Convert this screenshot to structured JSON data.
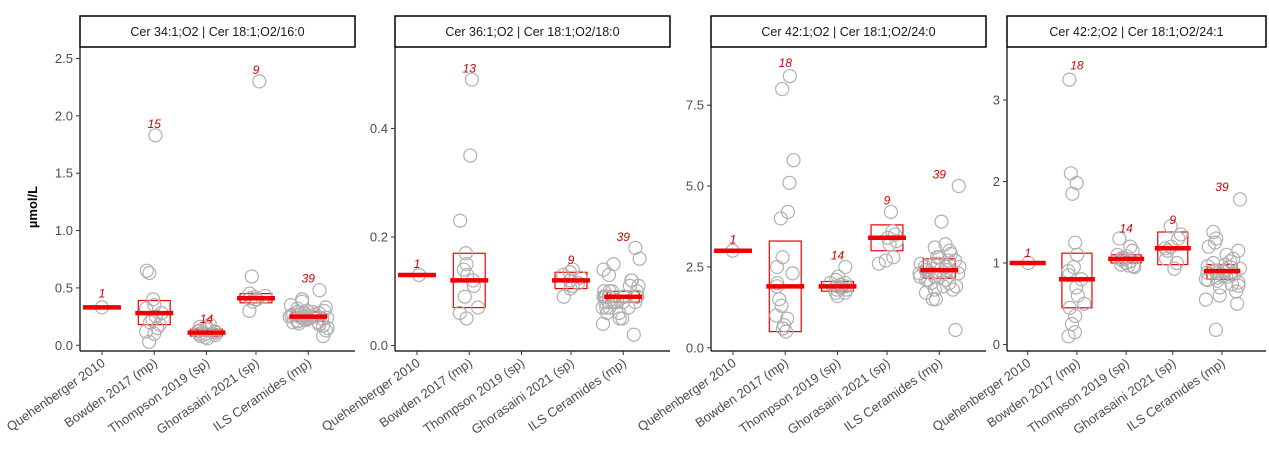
{
  "chart_data": {
    "type": "scatter",
    "ylabel": "µmol/L",
    "categories": [
      "Quehenberger 2010",
      "Bowden 2017 (mp)",
      "Thompson 2019 (sp)",
      "Ghorasaini 2021 (sp)",
      "ILS Ceramides (mp)"
    ],
    "colors": {
      "median": "#ee0000",
      "box": "#ee0000",
      "points": "#b0b0b0",
      "count": "#cc0000"
    },
    "panels": [
      {
        "title": "Cer 34:1;O2 | Cer 18:1;O2/16:0",
        "ylim": [
          -0.05,
          2.6
        ],
        "yticks": [
          0.0,
          0.5,
          1.0,
          1.5,
          2.0,
          2.5
        ],
        "ytick_labels": [
          "0.0",
          "0.5",
          "1.0",
          "1.5",
          "2.0",
          "2.5"
        ],
        "groups": [
          {
            "category": "Quehenberger 2010",
            "n": "1",
            "median": 0.33,
            "q1": 0.33,
            "q3": 0.33,
            "label_y": 0.45,
            "points": [
              0.33
            ]
          },
          {
            "category": "Bowden 2017 (mp)",
            "n": "15",
            "median": 0.28,
            "q1": 0.18,
            "q3": 0.39,
            "label_y": 1.93,
            "points": [
              1.83,
              0.65,
              0.63,
              0.4,
              0.35,
              0.32,
              0.28,
              0.25,
              0.22,
              0.2,
              0.18,
              0.15,
              0.12,
              0.1,
              0.03
            ]
          },
          {
            "category": "Thompson 2019 (sp)",
            "n": "14",
            "median": 0.11,
            "q1": 0.08,
            "q3": 0.14,
            "label_y": 0.23,
            "points": [
              0.18,
              0.16,
              0.15,
              0.14,
              0.13,
              0.12,
              0.12,
              0.11,
              0.1,
              0.1,
              0.09,
              0.08,
              0.07,
              0.06
            ]
          },
          {
            "category": "Ghorasaini 2021 (sp)",
            "n": "9",
            "median": 0.41,
            "q1": 0.37,
            "q3": 0.45,
            "label_y": 2.4,
            "points": [
              2.3,
              0.6,
              0.45,
              0.43,
              0.42,
              0.41,
              0.4,
              0.38,
              0.3
            ]
          },
          {
            "category": "ILS Ceramides (mp)",
            "n": "39",
            "median": 0.25,
            "q1": 0.21,
            "q3": 0.29,
            "label_y": 0.58,
            "points": [
              0.48,
              0.4,
              0.38,
              0.35,
              0.33,
              0.32,
              0.3,
              0.3,
              0.29,
              0.29,
              0.28,
              0.28,
              0.27,
              0.27,
              0.26,
              0.26,
              0.26,
              0.25,
              0.25,
              0.25,
              0.25,
              0.24,
              0.24,
              0.24,
              0.23,
              0.23,
              0.23,
              0.22,
              0.22,
              0.21,
              0.21,
              0.2,
              0.2,
              0.19,
              0.18,
              0.17,
              0.15,
              0.13,
              0.08
            ]
          }
        ]
      },
      {
        "title": "Cer 36:1;O2 | Cer 18:1;O2/18:0",
        "ylim": [
          -0.01,
          0.55
        ],
        "yticks": [
          0.0,
          0.2,
          0.4
        ],
        "ytick_labels": [
          "0.0",
          "0.2",
          "0.4"
        ],
        "groups": [
          {
            "category": "Quehenberger 2010",
            "n": "1",
            "median": 0.13,
            "q1": 0.13,
            "q3": 0.13,
            "label_y": 0.15,
            "points": [
              0.13
            ]
          },
          {
            "category": "Bowden 2017 (mp)",
            "n": "13",
            "median": 0.12,
            "q1": 0.07,
            "q3": 0.17,
            "label_y": 0.51,
            "points": [
              0.49,
              0.35,
              0.23,
              0.17,
              0.15,
              0.14,
              0.13,
              0.12,
              0.11,
              0.09,
              0.07,
              0.06,
              0.05
            ]
          },
          {
            "category": "Thompson 2019 (sp)",
            "n": "",
            "median": null,
            "q1": null,
            "q3": null,
            "label_y": 0,
            "points": []
          },
          {
            "category": "Ghorasaini 2021 (sp)",
            "n": "9",
            "median": 0.12,
            "q1": 0.105,
            "q3": 0.135,
            "label_y": 0.158,
            "points": [
              0.14,
              0.135,
              0.13,
              0.125,
              0.12,
              0.115,
              0.11,
              0.105,
              0.09
            ]
          },
          {
            "category": "ILS Ceramides (mp)",
            "n": "39",
            "median": 0.09,
            "q1": 0.08,
            "q3": 0.1,
            "label_y": 0.2,
            "points": [
              0.18,
              0.16,
              0.15,
              0.14,
              0.13,
              0.12,
              0.12,
              0.11,
              0.11,
              0.1,
              0.1,
              0.1,
              0.1,
              0.09,
              0.09,
              0.09,
              0.09,
              0.09,
              0.09,
              0.09,
              0.09,
              0.08,
              0.08,
              0.08,
              0.08,
              0.08,
              0.08,
              0.08,
              0.08,
              0.07,
              0.07,
              0.07,
              0.07,
              0.06,
              0.06,
              0.05,
              0.05,
              0.04,
              0.02
            ]
          }
        ]
      },
      {
        "title": "Cer 42:1;O2 | Cer 18:1;O2/24:0",
        "ylim": [
          -0.1,
          9.3
        ],
        "yticks": [
          0.0,
          2.5,
          5.0,
          7.5
        ],
        "ytick_labels": [
          "0.0",
          "2.5",
          "5.0",
          "7.5"
        ],
        "groups": [
          {
            "category": "Quehenberger 2010",
            "n": "1",
            "median": 3.0,
            "q1": 3.0,
            "q3": 3.0,
            "label_y": 3.35,
            "points": [
              3.0
            ]
          },
          {
            "category": "Bowden 2017 (mp)",
            "n": "18",
            "median": 1.9,
            "q1": 0.5,
            "q3": 3.3,
            "label_y": 8.8,
            "points": [
              8.4,
              8.0,
              5.8,
              5.1,
              4.2,
              4.0,
              2.8,
              2.5,
              2.3,
              2.0,
              1.9,
              1.5,
              1.3,
              1.0,
              0.9,
              0.7,
              0.6,
              0.5
            ]
          },
          {
            "category": "Thompson 2019 (sp)",
            "n": "14",
            "median": 1.9,
            "q1": 1.75,
            "q3": 2.05,
            "label_y": 2.85,
            "points": [
              2.5,
              2.2,
              2.1,
              2.0,
              2.0,
              1.95,
              1.9,
              1.9,
              1.85,
              1.8,
              1.8,
              1.7,
              1.7,
              1.6
            ]
          },
          {
            "category": "Ghorasaini 2021 (sp)",
            "n": "9",
            "median": 3.4,
            "q1": 3.0,
            "q3": 3.8,
            "label_y": 4.55,
            "points": [
              4.2,
              3.6,
              3.5,
              3.4,
              3.3,
              3.2,
              2.8,
              2.7,
              2.6
            ]
          },
          {
            "category": "ILS Ceramides (mp)",
            "n": "39",
            "median": 2.4,
            "q1": 2.15,
            "q3": 2.75,
            "label_y": 5.35,
            "points": [
              5.0,
              3.9,
              3.2,
              3.1,
              3.0,
              2.9,
              2.8,
              2.8,
              2.7,
              2.7,
              2.6,
              2.6,
              2.6,
              2.5,
              2.5,
              2.5,
              2.4,
              2.4,
              2.4,
              2.4,
              2.3,
              2.3,
              2.3,
              2.2,
              2.2,
              2.2,
              2.1,
              2.1,
              2.1,
              2.0,
              2.0,
              1.9,
              1.9,
              1.8,
              1.8,
              1.7,
              1.5,
              1.5,
              0.55
            ]
          }
        ]
      },
      {
        "title": "Cer 42:2;O2 | Cer 18:1;O2/24:1",
        "ylim": [
          -0.08,
          3.65
        ],
        "yticks": [
          0,
          1,
          2,
          3
        ],
        "ytick_labels": [
          "0",
          "1",
          "2",
          "3"
        ],
        "groups": [
          {
            "category": "Quehenberger 2010",
            "n": "1",
            "median": 1.0,
            "q1": 1.0,
            "q3": 1.0,
            "label_y": 1.12,
            "points": [
              1.0
            ]
          },
          {
            "category": "Bowden 2017 (mp)",
            "n": "18",
            "median": 0.8,
            "q1": 0.45,
            "q3": 1.12,
            "label_y": 3.42,
            "points": [
              3.25,
              2.1,
              1.98,
              1.85,
              1.25,
              1.1,
              0.95,
              0.9,
              0.85,
              0.8,
              0.7,
              0.6,
              0.5,
              0.45,
              0.35,
              0.25,
              0.15,
              0.1
            ]
          },
          {
            "category": "Thompson 2019 (sp)",
            "n": "14",
            "median": 1.05,
            "q1": 1.0,
            "q3": 1.1,
            "label_y": 1.42,
            "points": [
              1.3,
              1.2,
              1.15,
              1.1,
              1.08,
              1.06,
              1.05,
              1.04,
              1.02,
              1.0,
              0.98,
              0.97,
              0.96,
              0.95
            ]
          },
          {
            "category": "Ghorasaini 2021 (sp)",
            "n": "9",
            "median": 1.18,
            "q1": 0.98,
            "q3": 1.38,
            "label_y": 1.53,
            "points": [
              1.45,
              1.35,
              1.3,
              1.2,
              1.18,
              1.15,
              1.05,
              1.0,
              0.93
            ]
          },
          {
            "category": "ILS Ceramides (mp)",
            "n": "39",
            "median": 0.9,
            "q1": 0.8,
            "q3": 0.98,
            "label_y": 1.93,
            "points": [
              1.78,
              1.38,
              1.3,
              1.25,
              1.2,
              1.15,
              1.1,
              1.05,
              1.02,
              1.0,
              0.98,
              0.96,
              0.95,
              0.93,
              0.92,
              0.91,
              0.9,
              0.9,
              0.89,
              0.88,
              0.88,
              0.87,
              0.86,
              0.85,
              0.84,
              0.83,
              0.82,
              0.8,
              0.79,
              0.78,
              0.76,
              0.74,
              0.72,
              0.7,
              0.65,
              0.6,
              0.55,
              0.5,
              0.18
            ]
          }
        ]
      }
    ]
  }
}
